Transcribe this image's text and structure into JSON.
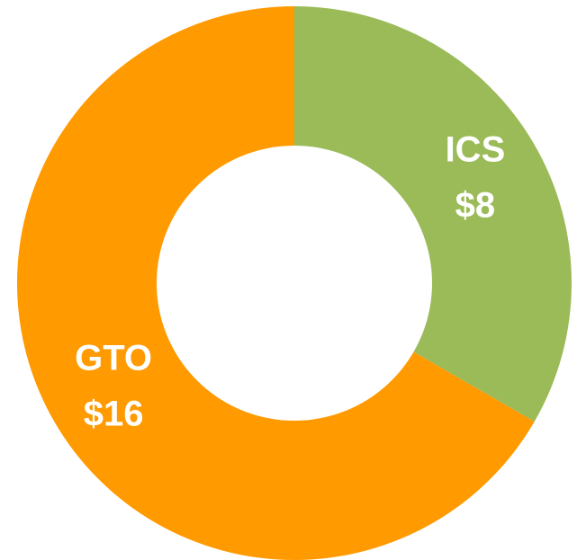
{
  "chart_data": {
    "type": "donut",
    "categories": [
      "ICS",
      "GTO"
    ],
    "values": [
      8,
      16
    ],
    "value_labels": [
      "$8",
      "$16"
    ],
    "colors": [
      "#9bbb59",
      "#ff9a00"
    ]
  }
}
